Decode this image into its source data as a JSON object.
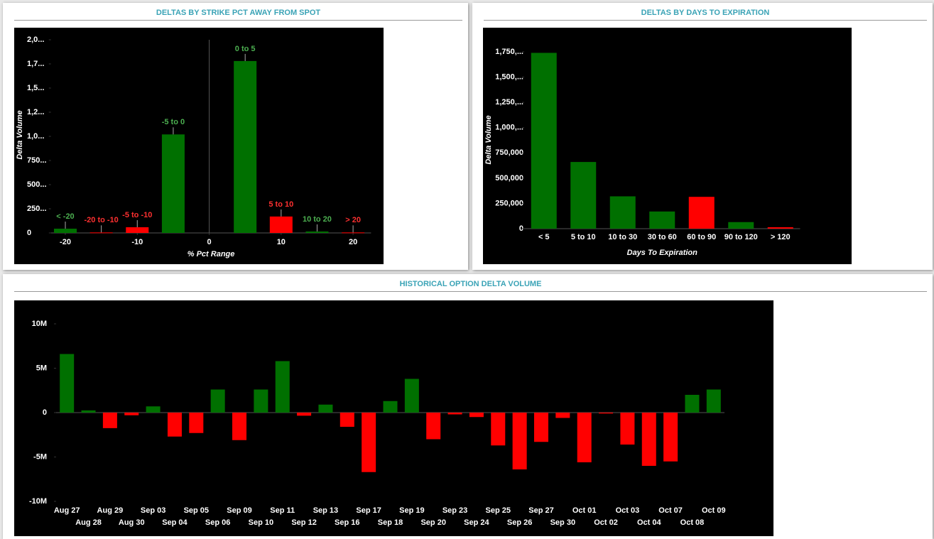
{
  "chart_data": [
    {
      "type": "bar",
      "title": "DELTAS BY STRIKE PCT AWAY FROM SPOT",
      "x_label": "% Pct Range",
      "y_label": "Delta Volume",
      "x": [
        -20,
        -15,
        -10,
        -5,
        5,
        10,
        15,
        20
      ],
      "bar_labels": [
        "< -20",
        "-20 to -10",
        "-5 to -10",
        "-5 to 0",
        "0 to 5",
        "5 to 10",
        "10 to 20",
        "> 20"
      ],
      "values": [
        44000,
        5000,
        59000,
        1020000,
        1780000,
        170000,
        15000,
        5000
      ],
      "colors": [
        "#007000",
        "#ff0000",
        "#ff0000",
        "#007000",
        "#007000",
        "#ff0000",
        "#007000",
        "#ff0000"
      ],
      "label_colors": [
        "#4caf50",
        "#ff3030",
        "#ff3030",
        "#4caf50",
        "#4caf50",
        "#ff3030",
        "#4caf50",
        "#ff3030"
      ],
      "xlim": [
        -22,
        22.5
      ],
      "xticks": [
        -20,
        -10,
        0,
        10,
        20
      ],
      "ylim": [
        0,
        2000000
      ],
      "yticks": [
        0,
        {
          "value": 250000,
          "label": "250..."
        },
        {
          "value": 500000,
          "label": "500..."
        },
        {
          "value": 750000,
          "label": "750..."
        },
        {
          "value": 1000000,
          "label": "1,0..."
        },
        {
          "value": 1250000,
          "label": "1,2..."
        },
        {
          "value": 1500000,
          "label": "1,5..."
        },
        {
          "value": 1750000,
          "label": "1,7..."
        },
        {
          "value": 2000000,
          "label": "2,0..."
        }
      ]
    },
    {
      "type": "bar",
      "title": "DELTAS BY DAYS TO EXPIRATION",
      "x_label": "Days To Expiration",
      "y_label": "Delta Volume",
      "categories": [
        "< 5",
        "5 to 10",
        "10 to 30",
        "30 to 60",
        "60 to 90",
        "90 to 120",
        "> 120"
      ],
      "values": [
        1740000,
        660000,
        320000,
        170000,
        315000,
        65000,
        14000
      ],
      "colors": [
        "#007000",
        "#007000",
        "#007000",
        "#007000",
        "#ff0000",
        "#007000",
        "#ff0000"
      ],
      "ylim": [
        0,
        1750000
      ],
      "yticks": [
        0,
        {
          "value": 250000,
          "label": "250,000"
        },
        {
          "value": 500000,
          "label": "500,000"
        },
        {
          "value": 750000,
          "label": "750,000"
        },
        {
          "value": 1000000,
          "label": "1,000,..."
        },
        {
          "value": 1250000,
          "label": "1,250,..."
        },
        {
          "value": 1500000,
          "label": "1,500,..."
        },
        {
          "value": 1750000,
          "label": "1,750,..."
        }
      ]
    },
    {
      "type": "bar",
      "title": "HISTORICAL OPTION DELTA VOLUME",
      "categories": [
        "Aug 27",
        "Aug 28",
        "Aug 29",
        "Aug 30",
        "Sep 03",
        "Sep 04",
        "Sep 05",
        "Sep 06",
        "Sep 09",
        "Sep 10",
        "Sep 11",
        "Sep 12",
        "Sep 13",
        "Sep 16",
        "Sep 17",
        "Sep 18",
        "Sep 19",
        "Sep 20",
        "Sep 23",
        "Sep 24",
        "Sep 25",
        "Sep 26",
        "Sep 27",
        "Sep 30",
        "Oct 01",
        "Oct 02",
        "Oct 03",
        "Oct 04",
        "Oct 07",
        "Oct 08",
        "Oct 09"
      ],
      "values": [
        6600000,
        250000,
        -1750000,
        -300000,
        700000,
        -2700000,
        -2300000,
        2600000,
        -3100000,
        2600000,
        5800000,
        -350000,
        900000,
        -1600000,
        -6700000,
        1300000,
        3800000,
        -3000000,
        -200000,
        -500000,
        -3700000,
        -6400000,
        -3300000,
        -600000,
        -5600000,
        -100000,
        -3600000,
        -6000000,
        -5500000,
        2000000,
        2600000
      ],
      "positive_color": "#007000",
      "negative_color": "#ff0000",
      "ylim": [
        -10000000,
        10000000
      ],
      "yticks": [
        {
          "value": -10000000,
          "label": "-10M"
        },
        {
          "value": -5000000,
          "label": "-5M"
        },
        0,
        {
          "value": 5000000,
          "label": "5M"
        },
        {
          "value": 10000000,
          "label": "10M"
        }
      ]
    }
  ]
}
